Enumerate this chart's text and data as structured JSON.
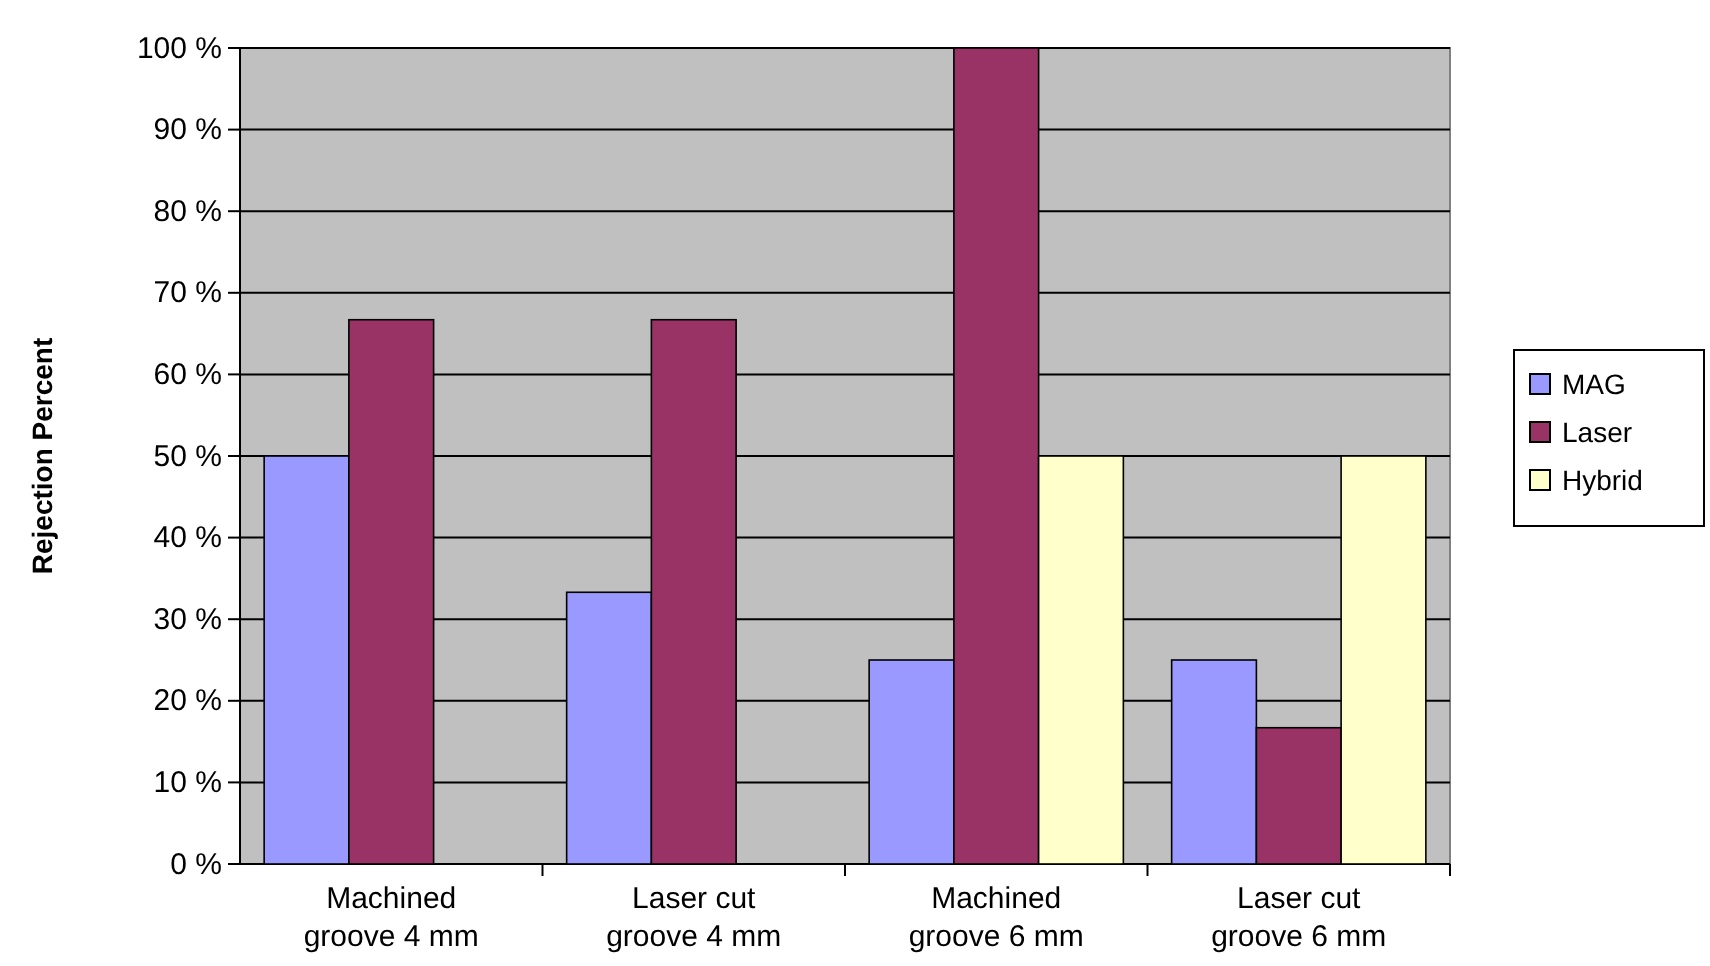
{
  "chart_data": {
    "type": "bar",
    "ylabel": "Rejection Percent",
    "categories": [
      "Machined groove 4 mm",
      "Laser cut groove 4 mm",
      "Machined groove 6 mm",
      "Laser cut groove 6 mm"
    ],
    "series": [
      {
        "name": "MAG",
        "color": "#9999ff",
        "values": [
          50,
          33.3,
          25,
          25
        ]
      },
      {
        "name": "Laser",
        "color": "#993366",
        "values": [
          66.7,
          66.7,
          100,
          16.7
        ]
      },
      {
        "name": "Hybrid",
        "color": "#ffffcc",
        "values": [
          0,
          0,
          50,
          50
        ]
      }
    ],
    "ylim": [
      0,
      100
    ],
    "yticks": [
      {
        "value": 0,
        "label": "0 %"
      },
      {
        "value": 10,
        "label": "10 %"
      },
      {
        "value": 20,
        "label": "20 %"
      },
      {
        "value": 30,
        "label": "30 %"
      },
      {
        "value": 40,
        "label": "40 %"
      },
      {
        "value": 50,
        "label": "50 %"
      },
      {
        "value": 60,
        "label": "60 %"
      },
      {
        "value": 70,
        "label": "70 %"
      },
      {
        "value": 80,
        "label": "80 %"
      },
      {
        "value": 90,
        "label": "90 %"
      },
      {
        "value": 100,
        "label": "100 %"
      }
    ],
    "grid": "y",
    "legend": "right"
  }
}
